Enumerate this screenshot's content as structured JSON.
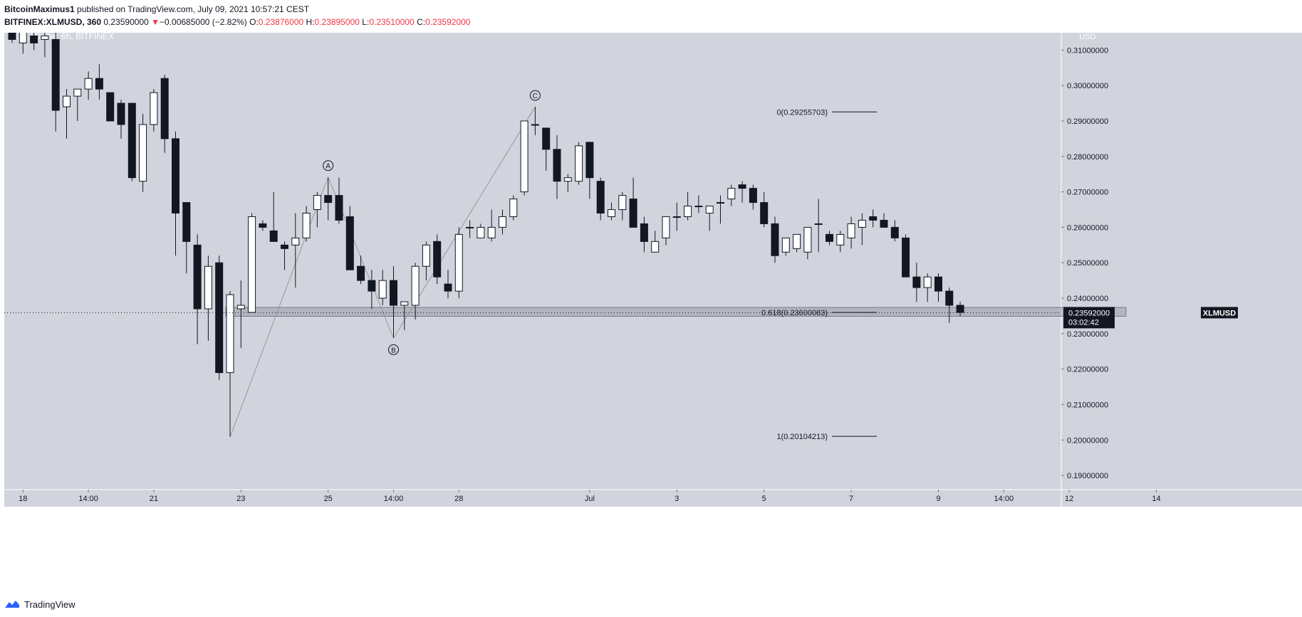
{
  "header": {
    "publisher": "BitcoinMaximus1",
    "published_text": "published on TradingView.com, July 09, 2021 10:57:21 CEST",
    "symbol": "BITFINEX:XLMUSD, 360",
    "last": "0.23590000",
    "change_arrow": "▼",
    "change": "−0.00685000 (−2.82%)",
    "o_label": "O:",
    "o": "0.23876000",
    "h_label": "H:",
    "h": "0.23895000",
    "l_label": "L:",
    "l": "0.23510000",
    "c_label": "C:",
    "c": "0.23592000"
  },
  "footer": {
    "brand": "TradingView",
    "logo_icon": "tradingview-logo-icon"
  },
  "colors": {
    "background": "#d1d4dc",
    "bull": "#ffffff",
    "bear": "#131722",
    "wick": "#131722",
    "down": "#f23645"
  },
  "chart_data": {
    "type": "candlestick",
    "title": "XLM / Dollar, 6h, BITFINEX",
    "currency": "USD",
    "ylim": [
      0.186,
      0.3165
    ],
    "y_ticks": [
      0.19,
      0.2,
      0.21,
      0.22,
      0.23,
      0.24,
      0.25,
      0.26,
      0.27,
      0.28,
      0.29,
      0.3,
      0.31
    ],
    "y_tick_labels": [
      "0.19000000",
      "0.20000000",
      "0.21000000",
      "0.22000000",
      "0.23000000",
      "0.24000000",
      "0.25000000",
      "0.26000000",
      "0.27000000",
      "0.28000000",
      "0.29000000",
      "0.30000000",
      "0.31000000"
    ],
    "x_ticks": [
      {
        "label": "18",
        "bar": 1
      },
      {
        "label": "14:00",
        "bar": 7
      },
      {
        "label": "21",
        "bar": 13
      },
      {
        "label": "23",
        "bar": 21
      },
      {
        "label": "25",
        "bar": 29
      },
      {
        "label": "14:00",
        "bar": 35
      },
      {
        "label": "28",
        "bar": 41
      },
      {
        "label": "Jul",
        "bar": 53
      },
      {
        "label": "3",
        "bar": 61
      },
      {
        "label": "5",
        "bar": 69
      },
      {
        "label": "7",
        "bar": 77
      },
      {
        "label": "9",
        "bar": 85
      },
      {
        "label": "14:00",
        "bar": 91
      },
      {
        "label": "12",
        "bar": 97
      },
      {
        "label": "14",
        "bar": 105
      }
    ],
    "candles": [
      [
        0.316,
        0.318,
        0.312,
        0.313
      ],
      [
        0.312,
        0.317,
        0.309,
        0.315
      ],
      [
        0.314,
        0.318,
        0.31,
        0.312
      ],
      [
        0.313,
        0.315,
        0.308,
        0.314
      ],
      [
        0.313,
        0.316,
        0.287,
        0.293
      ],
      [
        0.294,
        0.299,
        0.285,
        0.297
      ],
      [
        0.297,
        0.299,
        0.29,
        0.299
      ],
      [
        0.299,
        0.304,
        0.296,
        0.302
      ],
      [
        0.302,
        0.306,
        0.296,
        0.299
      ],
      [
        0.298,
        0.298,
        0.29,
        0.29
      ],
      [
        0.295,
        0.296,
        0.285,
        0.289
      ],
      [
        0.295,
        0.295,
        0.273,
        0.274
      ],
      [
        0.273,
        0.292,
        0.27,
        0.289
      ],
      [
        0.289,
        0.299,
        0.287,
        0.298
      ],
      [
        0.302,
        0.303,
        0.281,
        0.285
      ],
      [
        0.285,
        0.287,
        0.252,
        0.264
      ],
      [
        0.267,
        0.267,
        0.247,
        0.256
      ],
      [
        0.255,
        0.258,
        0.227,
        0.237
      ],
      [
        0.237,
        0.252,
        0.228,
        0.249
      ],
      [
        0.25,
        0.252,
        0.217,
        0.219
      ],
      [
        0.219,
        0.242,
        0.201,
        0.241
      ],
      [
        0.237,
        0.245,
        0.226,
        0.238
      ],
      [
        0.236,
        0.264,
        0.236,
        0.263
      ],
      [
        0.261,
        0.262,
        0.259,
        0.26
      ],
      [
        0.259,
        0.27,
        0.256,
        0.256
      ],
      [
        0.255,
        0.256,
        0.248,
        0.254
      ],
      [
        0.255,
        0.264,
        0.243,
        0.257
      ],
      [
        0.257,
        0.266,
        0.256,
        0.264
      ],
      [
        0.265,
        0.27,
        0.26,
        0.269
      ],
      [
        0.269,
        0.274,
        0.262,
        0.267
      ],
      [
        0.269,
        0.274,
        0.261,
        0.262
      ],
      [
        0.263,
        0.266,
        0.248,
        0.248
      ],
      [
        0.249,
        0.252,
        0.244,
        0.245
      ],
      [
        0.245,
        0.248,
        0.237,
        0.242
      ],
      [
        0.24,
        0.248,
        0.238,
        0.245
      ],
      [
        0.245,
        0.249,
        0.229,
        0.238
      ],
      [
        0.238,
        0.239,
        0.231,
        0.239
      ],
      [
        0.238,
        0.25,
        0.234,
        0.249
      ],
      [
        0.249,
        0.256,
        0.245,
        0.255
      ],
      [
        0.256,
        0.258,
        0.244,
        0.246
      ],
      [
        0.244,
        0.248,
        0.24,
        0.242
      ],
      [
        0.242,
        0.26,
        0.24,
        0.258
      ],
      [
        0.26,
        0.262,
        0.257,
        0.26
      ],
      [
        0.257,
        0.261,
        0.257,
        0.26
      ],
      [
        0.257,
        0.265,
        0.256,
        0.26
      ],
      [
        0.26,
        0.265,
        0.258,
        0.263
      ],
      [
        0.263,
        0.269,
        0.262,
        0.268
      ],
      [
        0.27,
        0.29,
        0.269,
        0.29
      ],
      [
        0.289,
        0.294,
        0.286,
        0.289
      ],
      [
        0.288,
        0.288,
        0.276,
        0.282
      ],
      [
        0.282,
        0.286,
        0.268,
        0.273
      ],
      [
        0.273,
        0.275,
        0.27,
        0.274
      ],
      [
        0.273,
        0.284,
        0.272,
        0.283
      ],
      [
        0.284,
        0.284,
        0.268,
        0.274
      ],
      [
        0.273,
        0.274,
        0.262,
        0.264
      ],
      [
        0.263,
        0.267,
        0.262,
        0.265
      ],
      [
        0.265,
        0.27,
        0.262,
        0.269
      ],
      [
        0.268,
        0.274,
        0.26,
        0.26
      ],
      [
        0.261,
        0.263,
        0.253,
        0.256
      ],
      [
        0.253,
        0.259,
        0.253,
        0.256
      ],
      [
        0.257,
        0.263,
        0.255,
        0.263
      ],
      [
        0.263,
        0.267,
        0.259,
        0.263
      ],
      [
        0.263,
        0.27,
        0.262,
        0.266
      ],
      [
        0.266,
        0.269,
        0.264,
        0.266
      ],
      [
        0.264,
        0.266,
        0.259,
        0.266
      ],
      [
        0.267,
        0.269,
        0.261,
        0.267
      ],
      [
        0.268,
        0.272,
        0.266,
        0.271
      ],
      [
        0.272,
        0.273,
        0.267,
        0.271
      ],
      [
        0.271,
        0.272,
        0.265,
        0.267
      ],
      [
        0.267,
        0.27,
        0.26,
        0.261
      ],
      [
        0.261,
        0.263,
        0.25,
        0.252
      ],
      [
        0.253,
        0.257,
        0.252,
        0.257
      ],
      [
        0.254,
        0.258,
        0.253,
        0.258
      ],
      [
        0.253,
        0.26,
        0.251,
        0.26
      ],
      [
        0.261,
        0.268,
        0.253,
        0.261
      ],
      [
        0.258,
        0.259,
        0.255,
        0.256
      ],
      [
        0.255,
        0.259,
        0.253,
        0.258
      ],
      [
        0.257,
        0.263,
        0.254,
        0.261
      ],
      [
        0.26,
        0.264,
        0.255,
        0.262
      ],
      [
        0.263,
        0.265,
        0.26,
        0.262
      ],
      [
        0.262,
        0.264,
        0.26,
        0.26
      ],
      [
        0.26,
        0.262,
        0.256,
        0.257
      ],
      [
        0.257,
        0.258,
        0.246,
        0.246
      ],
      [
        0.246,
        0.25,
        0.239,
        0.243
      ],
      [
        0.243,
        0.247,
        0.239,
        0.246
      ],
      [
        0.246,
        0.247,
        0.239,
        0.242
      ],
      [
        0.242,
        0.243,
        0.233,
        0.238
      ],
      [
        0.238,
        0.239,
        0.235,
        0.236
      ]
    ],
    "wave_labels": [
      {
        "text": "A",
        "bar": 29,
        "value": 0.2742,
        "pos": "above"
      },
      {
        "text": "B",
        "bar": 35,
        "value": 0.2287,
        "pos": "below"
      },
      {
        "text": "C",
        "bar": 48,
        "value": 0.294,
        "pos": "above"
      }
    ],
    "wave_path": [
      {
        "bar": 20,
        "value": 0.2008
      },
      {
        "bar": 29,
        "value": 0.2742
      },
      {
        "bar": 35,
        "value": 0.2287
      },
      {
        "bar": 48,
        "value": 0.294
      }
    ],
    "fib_levels": [
      {
        "label": "0(0.29255703)",
        "value": 0.29255703
      },
      {
        "label": "0.618(0.23600083)",
        "value": 0.23600083
      },
      {
        "label": "1(0.20104213)",
        "value": 0.20104213
      }
    ],
    "support_zone": {
      "low": 0.2349,
      "high": 0.2374
    },
    "price_label": {
      "symbol": "XLMUSD",
      "price": "0.23592000",
      "countdown": "03:02:42",
      "value": 0.23592
    }
  }
}
